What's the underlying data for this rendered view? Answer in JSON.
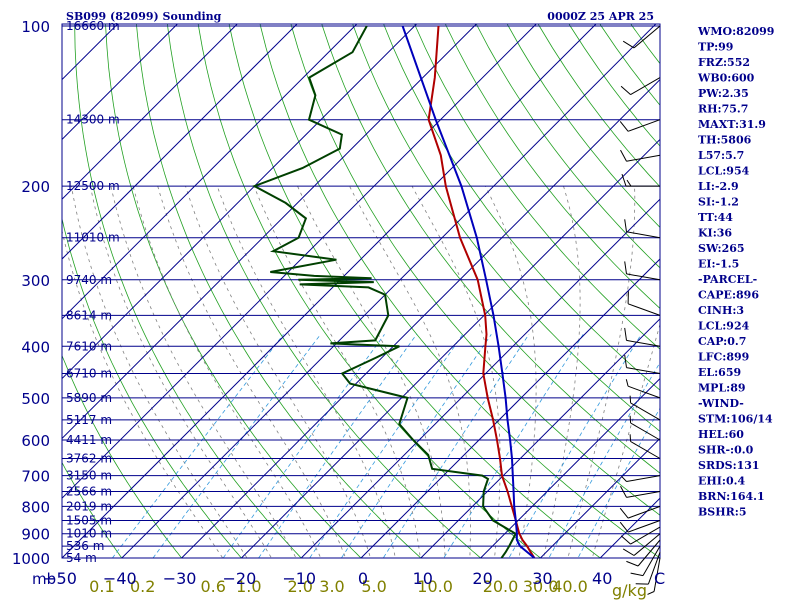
{
  "title_left": "SB099 (82099) Sounding",
  "title_right": "0000Z 25 APR 25",
  "corner_label": "mb",
  "temp_unit": "C",
  "mix_unit": "g/kg",
  "indices": [
    "WMO:82099",
    "TP:99",
    "FRZ:552",
    "WB0:600",
    "PW:2.35",
    "RH:75.7",
    "MAXT:31.9",
    "TH:5806",
    "L57:5.7",
    "LCL:954",
    "LI:-2.9",
    "SI:-1.2",
    "TT:44",
    "KI:36",
    "SW:265",
    "EI:-1.5",
    "-PARCEL-",
    "CAPE:896",
    "CINH:3",
    "LCL:924",
    "CAP:0.7",
    "LFC:899",
    "EL:659",
    "MPL:89",
    "-WIND-",
    "STM:106/14",
    "HEL:60",
    "SHR-:0.0",
    "SRDS:131",
    "EHI:0.4",
    "BRN:164.1",
    "BSHR:5"
  ],
  "colors": {
    "frame": "#00008b",
    "isobar": "#00008b",
    "isotherm": "#00008b",
    "dry_adiabat": "#22a022",
    "moist_adiabat": "#808080",
    "mixing_ratio": "#3399dd",
    "temperature": "#b00000",
    "dewpoint": "#004000",
    "parcel": "#0000bb",
    "wind": "#000000"
  },
  "chart_data": {
    "type": "line",
    "title": "SB099 (82099) Sounding",
    "xlabel": "C",
    "ylabel": "mb",
    "xlim": [
      -50,
      50
    ],
    "ylim": [
      1000,
      100
    ],
    "y_scale": "log",
    "pressure_ticks": [
      100,
      200,
      300,
      400,
      500,
      600,
      700,
      800,
      900,
      1000
    ],
    "temp_ticks": [
      -50,
      -40,
      -30,
      -20,
      -10,
      0,
      10,
      20,
      30,
      40
    ],
    "mixing_ratio_labels": [
      "0.1",
      "0.2",
      "0.6",
      "1.0",
      "2.0",
      "3.0",
      "5.0",
      "10.0",
      "20.0",
      "30.0",
      "40.0"
    ],
    "mixing_ratio_values": [
      0.1,
      0.2,
      0.6,
      1.0,
      2.0,
      3.0,
      5.0,
      10.0,
      20.0,
      30.0,
      40.0
    ],
    "heights": [
      {
        "p": 100,
        "label": "16660 m"
      },
      {
        "p": 150,
        "label": "14300 m"
      },
      {
        "p": 200,
        "label": "12500 m"
      },
      {
        "p": 250,
        "label": "11010 m"
      },
      {
        "p": 300,
        "label": "9740 m"
      },
      {
        "p": 350,
        "label": "8614 m"
      },
      {
        "p": 400,
        "label": "7610 m"
      },
      {
        "p": 450,
        "label": "6710 m"
      },
      {
        "p": 500,
        "label": "5890 m"
      },
      {
        "p": 550,
        "label": "5117 m"
      },
      {
        "p": 600,
        "label": "4411 m"
      },
      {
        "p": 650,
        "label": "3762 m"
      },
      {
        "p": 700,
        "label": "3150 m"
      },
      {
        "p": 750,
        "label": "2566 m"
      },
      {
        "p": 800,
        "label": "2019 m"
      },
      {
        "p": 850,
        "label": "1505 m"
      },
      {
        "p": 900,
        "label": "1010 m"
      },
      {
        "p": 950,
        "label": "536 m"
      },
      {
        "p": 1000,
        "label": "54 m"
      }
    ],
    "series": [
      {
        "key": "temperature",
        "points": [
          [
            1000,
            29.0
          ],
          [
            975,
            27.4
          ],
          [
            950,
            25.8
          ],
          [
            925,
            24.0
          ],
          [
            900,
            22.4
          ],
          [
            850,
            19.6
          ],
          [
            800,
            16.6
          ],
          [
            750,
            13.4
          ],
          [
            700,
            9.8
          ],
          [
            650,
            6.6
          ],
          [
            600,
            3.0
          ],
          [
            550,
            -1.0
          ],
          [
            500,
            -5.6
          ],
          [
            450,
            -10.4
          ],
          [
            400,
            -14.6
          ],
          [
            380,
            -16.4
          ],
          [
            350,
            -19.8
          ],
          [
            300,
            -27.0
          ],
          [
            250,
            -37.0
          ],
          [
            200,
            -48.0
          ],
          [
            175,
            -54.0
          ],
          [
            150,
            -62.0
          ],
          [
            125,
            -68.0
          ],
          [
            100,
            -76.0
          ]
        ]
      },
      {
        "key": "dewpoint",
        "points": [
          [
            1000,
            23.5
          ],
          [
            975,
            23.2
          ],
          [
            950,
            22.8
          ],
          [
            925,
            22.3
          ],
          [
            900,
            21.8
          ],
          [
            850,
            15.8
          ],
          [
            800,
            11.8
          ],
          [
            750,
            9.4
          ],
          [
            710,
            8.0
          ],
          [
            700,
            6.5
          ],
          [
            680,
            -3.0
          ],
          [
            640,
            -6.0
          ],
          [
            600,
            -11.0
          ],
          [
            560,
            -16.0
          ],
          [
            500,
            -19.0
          ],
          [
            470,
            -31.0
          ],
          [
            450,
            -34.0
          ],
          [
            420,
            -31.0
          ],
          [
            400,
            -29.0
          ],
          [
            395,
            -41.0
          ],
          [
            390,
            -34.0
          ],
          [
            350,
            -36.0
          ],
          [
            320,
            -40.0
          ],
          [
            310,
            -44.0
          ],
          [
            306,
            -56.0
          ],
          [
            303,
            -44.0
          ],
          [
            300,
            -57.0
          ],
          [
            298,
            -45.0
          ],
          [
            295,
            -55.0
          ],
          [
            290,
            -63.0
          ],
          [
            275,
            -54.0
          ],
          [
            265,
            -66.0
          ],
          [
            250,
            -64.0
          ],
          [
            230,
            -66.0
          ],
          [
            215,
            -72.0
          ],
          [
            200,
            -80.0
          ],
          [
            185,
            -75.0
          ],
          [
            170,
            -72.0
          ],
          [
            160,
            -74.0
          ],
          [
            150,
            -82.0
          ],
          [
            135,
            -85.0
          ],
          [
            125,
            -89.0
          ],
          [
            112,
            -86.0
          ],
          [
            100,
            -88.0
          ]
        ]
      },
      {
        "key": "parcel",
        "points": [
          [
            1000,
            29.0
          ],
          [
            950,
            24.6
          ],
          [
            924,
            23.0
          ],
          [
            900,
            22.0
          ],
          [
            850,
            19.6
          ],
          [
            800,
            17.0
          ],
          [
            750,
            14.4
          ],
          [
            700,
            11.6
          ],
          [
            650,
            8.6
          ],
          [
            600,
            5.2
          ],
          [
            550,
            1.4
          ],
          [
            500,
            -2.6
          ],
          [
            450,
            -7.2
          ],
          [
            400,
            -12.4
          ],
          [
            350,
            -18.4
          ],
          [
            300,
            -25.6
          ],
          [
            250,
            -34.2
          ],
          [
            200,
            -45.4
          ],
          [
            150,
            -60.8
          ],
          [
            100,
            -82.0
          ]
        ]
      }
    ],
    "wind_barbs": [
      {
        "p": 1000,
        "dir": 190,
        "spd": 5
      },
      {
        "p": 975,
        "dir": 200,
        "spd": 10
      },
      {
        "p": 950,
        "dir": 210,
        "spd": 10
      },
      {
        "p": 925,
        "dir": 220,
        "spd": 10
      },
      {
        "p": 900,
        "dir": 230,
        "spd": 10
      },
      {
        "p": 875,
        "dir": 240,
        "spd": 10
      },
      {
        "p": 850,
        "dir": 250,
        "spd": 10
      },
      {
        "p": 800,
        "dir": 250,
        "spd": 10
      },
      {
        "p": 750,
        "dir": 260,
        "spd": 10
      },
      {
        "p": 700,
        "dir": 260,
        "spd": 5
      },
      {
        "p": 650,
        "dir": 300,
        "spd": 5
      },
      {
        "p": 600,
        "dir": 300,
        "spd": 5
      },
      {
        "p": 550,
        "dir": 300,
        "spd": 5
      },
      {
        "p": 500,
        "dir": 290,
        "spd": 5
      },
      {
        "p": 450,
        "dir": 280,
        "spd": 10
      },
      {
        "p": 400,
        "dir": 280,
        "spd": 10
      },
      {
        "p": 350,
        "dir": 290,
        "spd": 10
      },
      {
        "p": 300,
        "dir": 280,
        "spd": 10
      },
      {
        "p": 250,
        "dir": 280,
        "spd": 10
      },
      {
        "p": 200,
        "dir": 270,
        "spd": 15
      },
      {
        "p": 175,
        "dir": 260,
        "spd": 10
      },
      {
        "p": 150,
        "dir": 250,
        "spd": 10
      },
      {
        "p": 125,
        "dir": 240,
        "spd": 10
      },
      {
        "p": 100,
        "dir": 230,
        "spd": 10
      }
    ]
  }
}
